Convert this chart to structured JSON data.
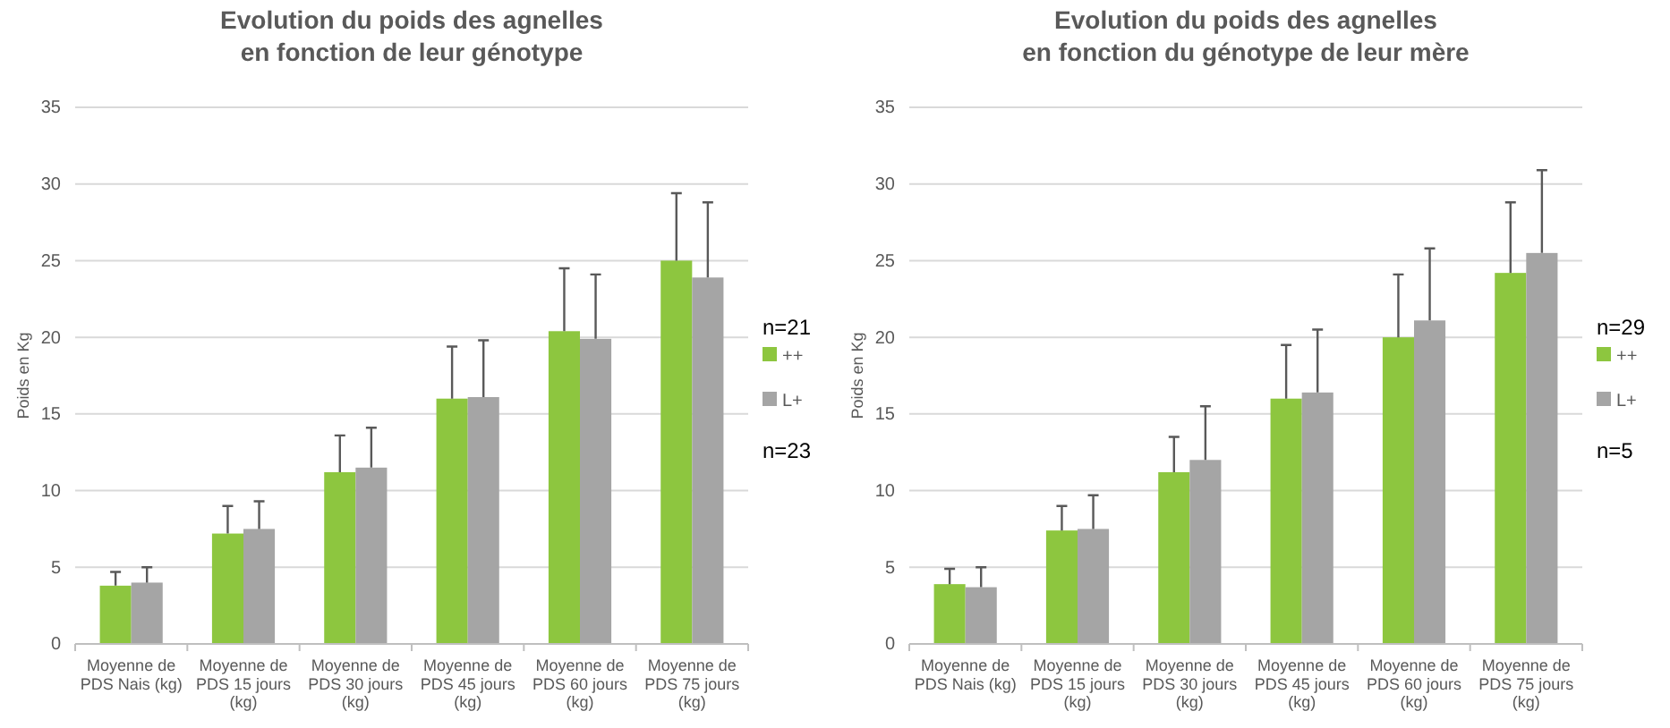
{
  "chart_data": [
    {
      "type": "bar",
      "title": "Evolution du poids des agnelles\nen fonction de leur génotype",
      "ylabel": "Poids en Kg",
      "categories": [
        "Moyenne de PDS Nais (kg)",
        "Moyenne de PDS 15 jours (kg)",
        "Moyenne de PDS 30 jours (kg)",
        "Moyenne de PDS 45 jours (kg)",
        "Moyenne de PDS 60 jours (kg)",
        "Moyenne de PDS 75 jours (kg)"
      ],
      "series": [
        {
          "name": "++",
          "color": "#8dc63f",
          "values": [
            3.8,
            7.2,
            11.2,
            16.0,
            20.4,
            25.0
          ],
          "errors": [
            [
              3.8,
              4.7
            ],
            [
              7.2,
              9.0
            ],
            [
              11.2,
              13.6
            ],
            [
              16.0,
              19.4
            ],
            [
              20.4,
              24.5
            ],
            [
              25.0,
              29.4
            ]
          ]
        },
        {
          "name": "L+",
          "color": "#a5a5a5",
          "values": [
            4.0,
            7.5,
            11.5,
            16.1,
            19.9,
            23.9
          ],
          "errors": [
            [
              4.0,
              5.0
            ],
            [
              7.5,
              9.3
            ],
            [
              11.5,
              14.1
            ],
            [
              16.1,
              19.8
            ],
            [
              19.9,
              24.1
            ],
            [
              23.9,
              28.8
            ]
          ]
        }
      ],
      "ylim": [
        0,
        35
      ],
      "yticks": [
        0,
        5,
        10,
        15,
        20,
        25,
        30,
        35
      ],
      "grid": "y",
      "legend": "right",
      "annotations": [
        "n=21",
        "n=23"
      ]
    },
    {
      "type": "bar",
      "title": "Evolution du poids des agnelles\nen fonction du génotype  de leur mère",
      "ylabel": "Poids en Kg",
      "categories": [
        "Moyenne de PDS Nais (kg)",
        "Moyenne de PDS 15 jours (kg)",
        "Moyenne de PDS 30 jours (kg)",
        "Moyenne de PDS 45 jours (kg)",
        "Moyenne de PDS 60 jours (kg)",
        "Moyenne de PDS 75 jours (kg)"
      ],
      "series": [
        {
          "name": "++",
          "color": "#8dc63f",
          "values": [
            3.9,
            7.4,
            11.2,
            16.0,
            20.0,
            24.2
          ],
          "errors": [
            [
              3.9,
              4.9
            ],
            [
              7.4,
              9.0
            ],
            [
              11.2,
              13.5
            ],
            [
              16.0,
              19.5
            ],
            [
              20.0,
              24.1
            ],
            [
              24.2,
              28.8
            ]
          ]
        },
        {
          "name": "L+",
          "color": "#a5a5a5",
          "values": [
            3.7,
            7.5,
            12.0,
            16.4,
            21.1,
            25.5
          ],
          "errors": [
            [
              3.7,
              5.0
            ],
            [
              7.5,
              9.7
            ],
            [
              12.0,
              15.5
            ],
            [
              16.4,
              20.5
            ],
            [
              21.1,
              25.8
            ],
            [
              25.5,
              30.9
            ]
          ]
        }
      ],
      "ylim": [
        0,
        35
      ],
      "yticks": [
        0,
        5,
        10,
        15,
        20,
        25,
        30,
        35
      ],
      "grid": "y",
      "legend": "right",
      "annotations": [
        "n=29",
        "n=5"
      ]
    }
  ]
}
